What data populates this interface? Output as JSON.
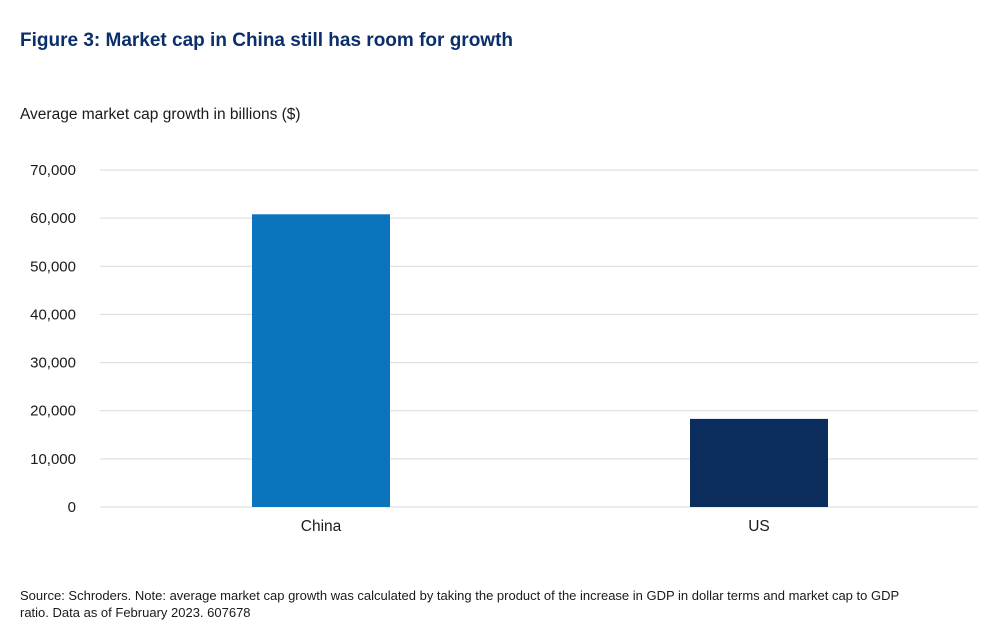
{
  "title": "Figure 3: Market cap in China still has room for growth",
  "source": "Source: Schroders. Note: average market cap growth was calculated by taking the product of the increase in GDP in dollar terms and market cap to GDP ratio. Data as of February 2023. 607678",
  "colors": {
    "title": "#0b2f6b",
    "bar_china": "#0a74bd",
    "bar_us": "#0b2d5e",
    "grid": "#d9d9d9"
  },
  "chart_data": {
    "type": "bar",
    "title": "Figure 3: Market cap in China still has room for growth",
    "ylabel": "Average market cap growth in billions ($)",
    "xlabel": "",
    "categories": [
      "China",
      "US"
    ],
    "values": [
      60800,
      18300
    ],
    "ylim": [
      0,
      70000
    ],
    "yticks": [
      0,
      10000,
      20000,
      30000,
      40000,
      50000,
      60000,
      70000
    ],
    "ytick_labels": [
      "0",
      "10,000",
      "20,000",
      "30,000",
      "40,000",
      "50,000",
      "60,000",
      "70,000"
    ],
    "grid": true,
    "legend": "none"
  }
}
